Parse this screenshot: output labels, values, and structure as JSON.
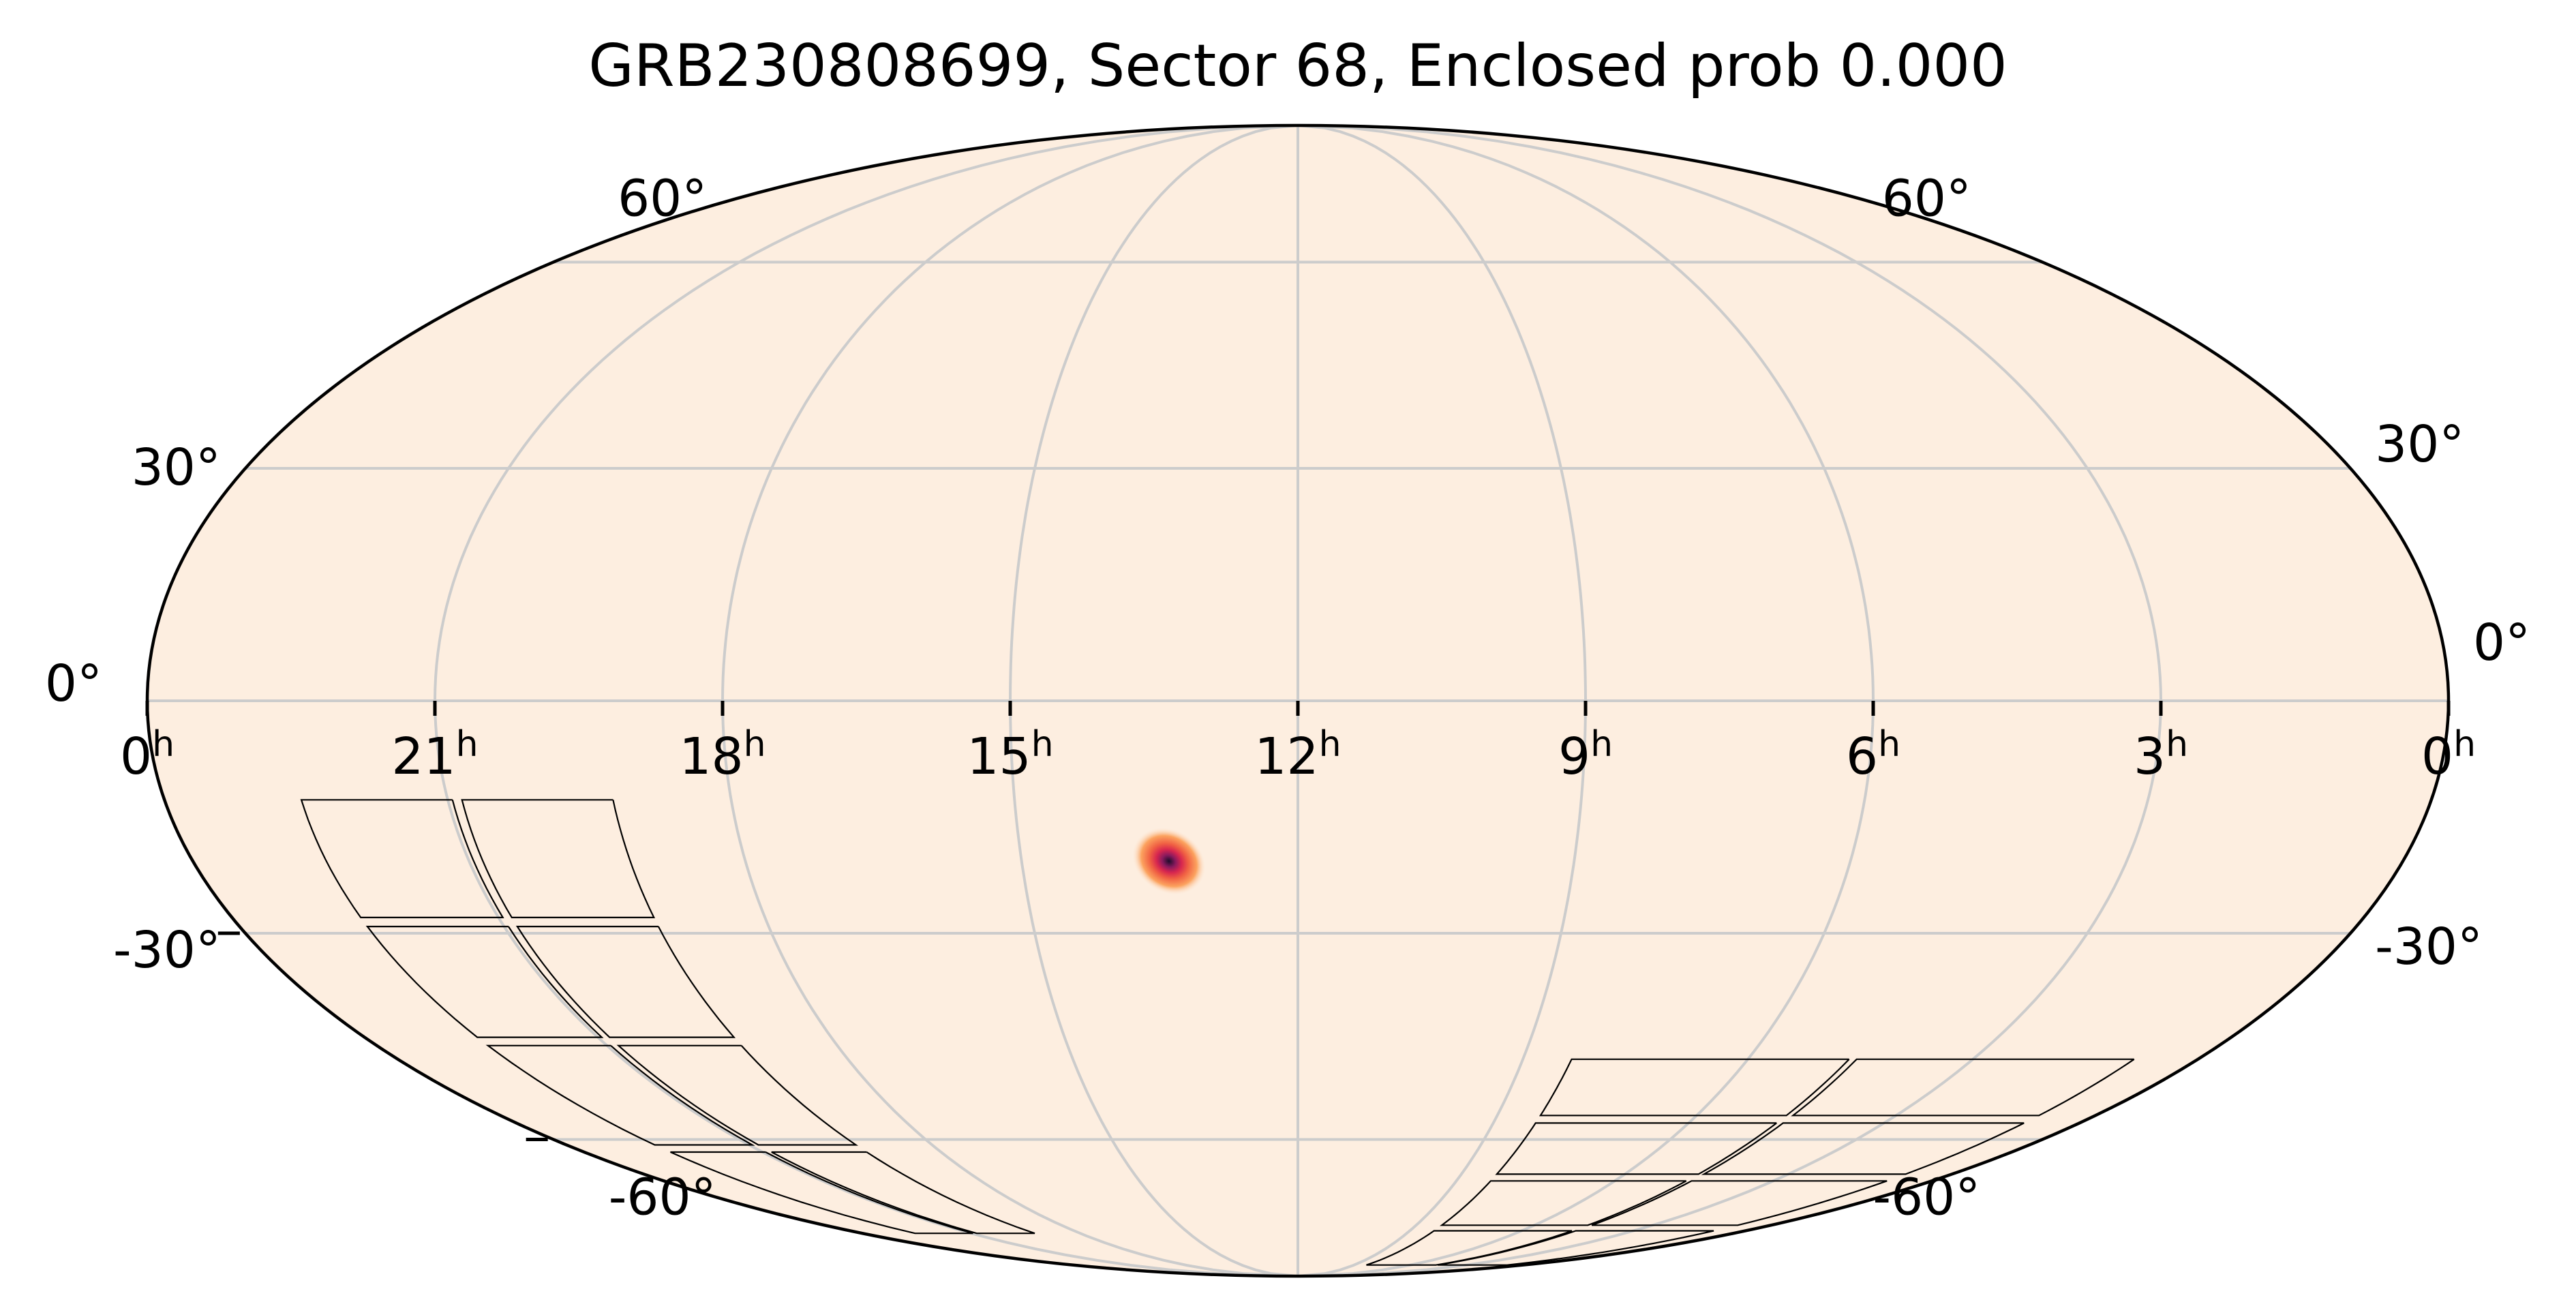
{
  "chart_data": {
    "type": "heatmap",
    "projection": "mollweide",
    "title": "GRB230808699, Sector 68, Enclosed prob 0.000",
    "ra_ticks": [
      {
        "ra_hours": 24,
        "label": "0",
        "unit": "h"
      },
      {
        "ra_hours": 21,
        "label": "21",
        "unit": "h"
      },
      {
        "ra_hours": 18,
        "label": "18",
        "unit": "h"
      },
      {
        "ra_hours": 15,
        "label": "15",
        "unit": "h"
      },
      {
        "ra_hours": 12,
        "label": "12",
        "unit": "h"
      },
      {
        "ra_hours": 9,
        "label": "9",
        "unit": "h"
      },
      {
        "ra_hours": 6,
        "label": "6",
        "unit": "h"
      },
      {
        "ra_hours": 3,
        "label": "3",
        "unit": "h"
      },
      {
        "ra_hours": 0,
        "label": "0",
        "unit": "h"
      }
    ],
    "dec_ticks": [
      {
        "dec_deg": 60,
        "label": "60°"
      },
      {
        "dec_deg": 30,
        "label": "30°"
      },
      {
        "dec_deg": 0,
        "label": "0°"
      },
      {
        "dec_deg": -30,
        "label": "-30°"
      },
      {
        "dec_deg": -60,
        "label": "-60°"
      }
    ],
    "ra_direction": "increasing-right-to-left",
    "ra_range_hours": [
      0,
      24
    ],
    "dec_range_deg": [
      -90,
      90
    ],
    "grid": true,
    "background_color": "#fdeee0",
    "grid_color": "#cccccc",
    "colormap": [
      "#fdeee0",
      "#fca35f",
      "#f06043",
      "#d7264f",
      "#8a1a5e",
      "#1d0d2a"
    ],
    "probability_peak": {
      "ra_hours": 13.4,
      "dec_deg": -20.5,
      "sigma_deg": 3.2
    },
    "footprints": [
      {
        "name": "tess-sector-68-cameras-left",
        "ra_range_hours": [
          19.2,
          22.6
        ],
        "dec_range_deg": [
          -78,
          -12
        ]
      },
      {
        "name": "tess-sector-68-cameras-right",
        "ra_range_hours": [
          0.8,
          8.4
        ],
        "dec_range_deg": [
          -86,
          -47
        ]
      }
    ],
    "enclosed_prob": 0.0
  }
}
